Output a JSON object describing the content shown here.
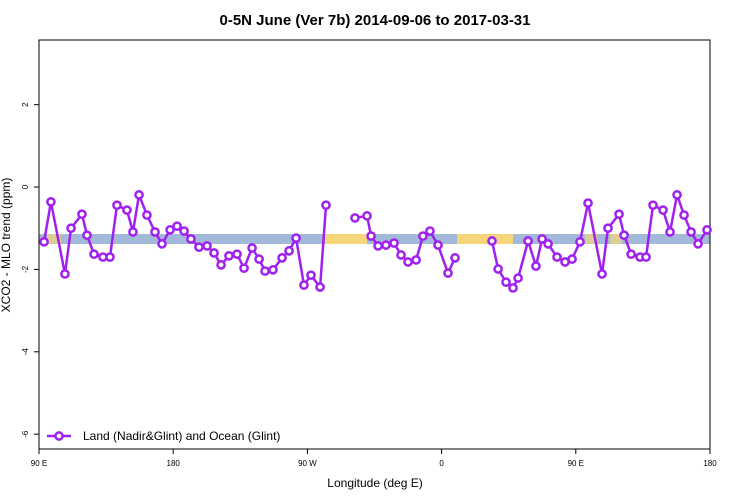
{
  "chart_data": {
    "type": "line",
    "title": "0-5N June (Ver 7b)   2014-09-06 to 2017-03-31",
    "x_label": "Longitude (deg E)",
    "y_label": "XCO2 - MLO trend (ppm)",
    "xlim": [
      90,
      540
    ],
    "ylim": [
      -6.36,
      3.57
    ],
    "xticks": [
      {
        "value": 90,
        "label": "90 E"
      },
      {
        "value": 180,
        "label": "180"
      },
      {
        "value": 270,
        "label": "90 W"
      },
      {
        "value": 360,
        "label": "0"
      },
      {
        "value": 450,
        "label": "90 E"
      },
      {
        "value": 540,
        "label": "180"
      }
    ],
    "yticks": [
      -6,
      -4,
      -2,
      0,
      2
    ],
    "legend": "bottom-left",
    "series": [
      {
        "name": "Land (Nadir&Glint) and Ocean (Glint)",
        "color": "#a020f0",
        "x": [
          93.4,
          98.0,
          107.4,
          111.5,
          118.8,
          122.2,
          126.9,
          132.9,
          137.6,
          142.3,
          149.0,
          153.0,
          157.1,
          162.4,
          167.8,
          172.5,
          177.9,
          182.6,
          187.3,
          191.9,
          197.3,
          202.7,
          207.4,
          212.1,
          217.4,
          222.8,
          227.5,
          232.9,
          237.6,
          241.6,
          246.9,
          253.0,
          257.7,
          262.4,
          267.7,
          272.4,
          278.5,
          282.5,
          null,
          301.9,
          310.0,
          312.7,
          317.4,
          322.7,
          328.1,
          332.8,
          337.5,
          342.9,
          347.5,
          352.2,
          357.6,
          364.3,
          369.0,
          null,
          393.8,
          397.9,
          403.2,
          407.9,
          411.3,
          418.0,
          423.3,
          427.4,
          431.4,
          437.4,
          442.8,
          447.5,
          452.8,
          458.2,
          467.6,
          471.6,
          479.0,
          482.4,
          487.1,
          493.1,
          497.1,
          501.8,
          508.5,
          513.2,
          517.9,
          522.6,
          527.3,
          532.0,
          538.0
        ],
        "values": [
          -1.33,
          -0.36,
          -2.11,
          -1.0,
          -0.66,
          -1.17,
          -1.63,
          -1.7,
          -1.7,
          -0.44,
          -0.56,
          -1.09,
          -0.19,
          -0.68,
          -1.09,
          -1.38,
          -1.04,
          -0.95,
          -1.07,
          -1.26,
          -1.46,
          -1.43,
          -1.6,
          -1.89,
          -1.67,
          -1.63,
          -1.97,
          -1.48,
          -1.75,
          -2.04,
          -2.01,
          -1.72,
          -1.55,
          -1.24,
          -2.38,
          -2.14,
          -2.43,
          -0.44,
          null,
          -0.75,
          -0.7,
          -1.19,
          -1.43,
          -1.41,
          -1.36,
          -1.65,
          -1.82,
          -1.77,
          -1.19,
          -1.07,
          -1.41,
          -2.09,
          -1.72,
          null,
          -1.31,
          -1.99,
          -2.31,
          -2.45,
          -2.21,
          -1.31,
          -1.92,
          -1.26,
          -1.38,
          -1.7,
          -1.82,
          -1.75,
          -1.33,
          -0.39,
          -2.11,
          -1.0,
          -0.66,
          -1.17,
          -1.63,
          -1.7,
          -1.7,
          -0.44,
          -0.56,
          -1.09,
          -0.19,
          -0.68,
          -1.09,
          -1.38,
          -1.04
        ]
      }
    ]
  }
}
